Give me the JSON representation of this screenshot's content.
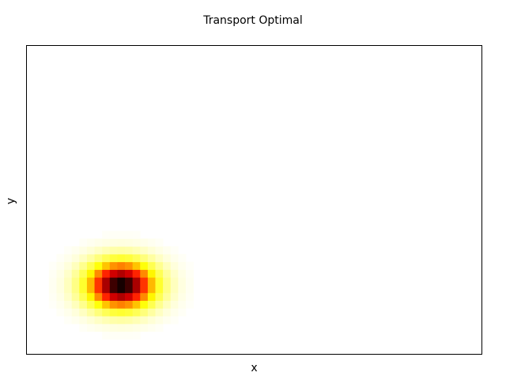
{
  "chart_data": {
    "type": "heatmap",
    "title": "Transport Optimal",
    "xlabel": "x",
    "ylabel": "y",
    "xticks": [],
    "yticks": [],
    "grid": false,
    "legend": "none",
    "colormap": "hot_r",
    "colors": {
      "low": "#ffffff",
      "mid_low": "#ffff00",
      "mid": "#ff8000",
      "mid_high": "#ff0000",
      "high": "#000000",
      "frame": "#000000"
    },
    "xlim": [
      0,
      60
    ],
    "ylim": [
      0,
      40
    ],
    "blob": {
      "center_x": 12.5,
      "center_y": 9,
      "sigma_x": 3.2,
      "sigma_y": 2.2,
      "peak": 1.0
    }
  }
}
